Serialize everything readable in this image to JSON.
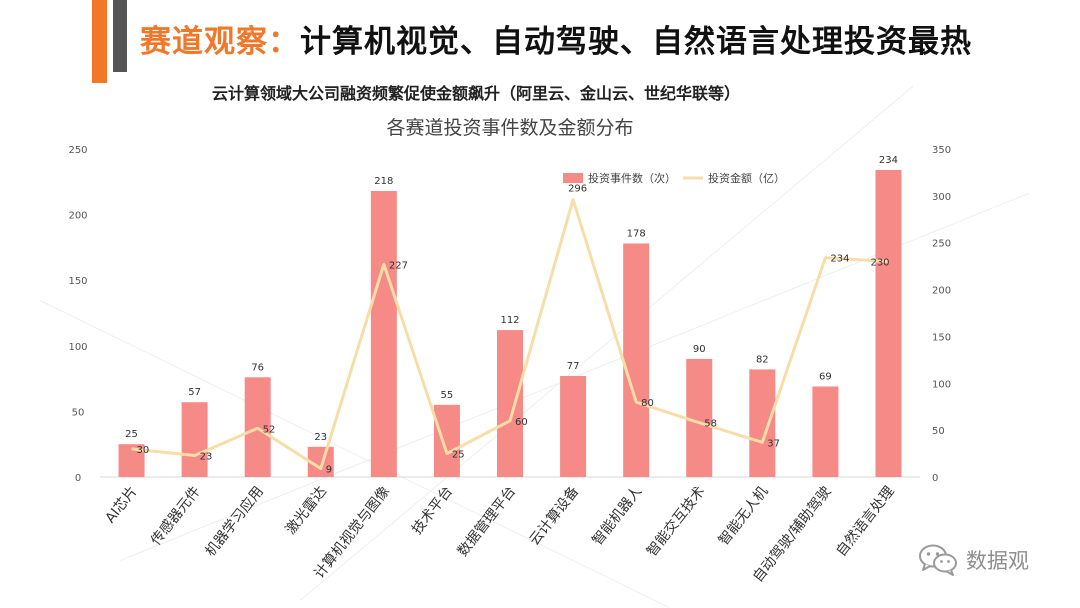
{
  "header": {
    "title_highlight": "赛道观察：",
    "title_rest": "计算机视觉、自动驾驶、自然语言处理投资最热",
    "subtitle": "云计算领域大公司融资频繁促使金额飙升（阿里云、金山云、世纪华联等）"
  },
  "colors": {
    "accent_orange": "#f07828",
    "accent_gray": "#555555",
    "bar": "#f58a87",
    "line": "#f7dda8"
  },
  "watermark": {
    "icon": "wechat-icon",
    "text": "数据观"
  },
  "chart_data": {
    "type": "bar",
    "title": "各赛道投资事件数及金额分布",
    "categories": [
      "AI芯片",
      "传感器元件",
      "机器学习应用",
      "激光雷达",
      "计算机视觉与图像",
      "技术平台",
      "数据管理平台",
      "云计算设备",
      "智能机器人",
      "智能交互技术",
      "智能无人机",
      "自动驾驶/辅助驾驶",
      "自然语言处理"
    ],
    "series": [
      {
        "name": "投资事件数（次）",
        "type": "bar",
        "axis": "left",
        "values": [
          25,
          57,
          76,
          23,
          218,
          55,
          112,
          77,
          178,
          90,
          82,
          69,
          234
        ]
      },
      {
        "name": "投资金额（亿）",
        "type": "line",
        "axis": "right",
        "values": [
          30,
          23,
          52,
          9,
          227,
          25,
          60,
          296,
          80,
          58,
          37,
          234,
          230
        ]
      }
    ],
    "y_left": {
      "min": 0,
      "max": 250,
      "ticks": [
        "0",
        "50",
        "100",
        "150",
        "200",
        "250"
      ]
    },
    "y_right": {
      "min": 0,
      "max": 350,
      "ticks": [
        "0",
        "50",
        "100",
        "150",
        "200",
        "250",
        "300",
        "350"
      ]
    },
    "legend_position": "top-right",
    "grid": false
  }
}
